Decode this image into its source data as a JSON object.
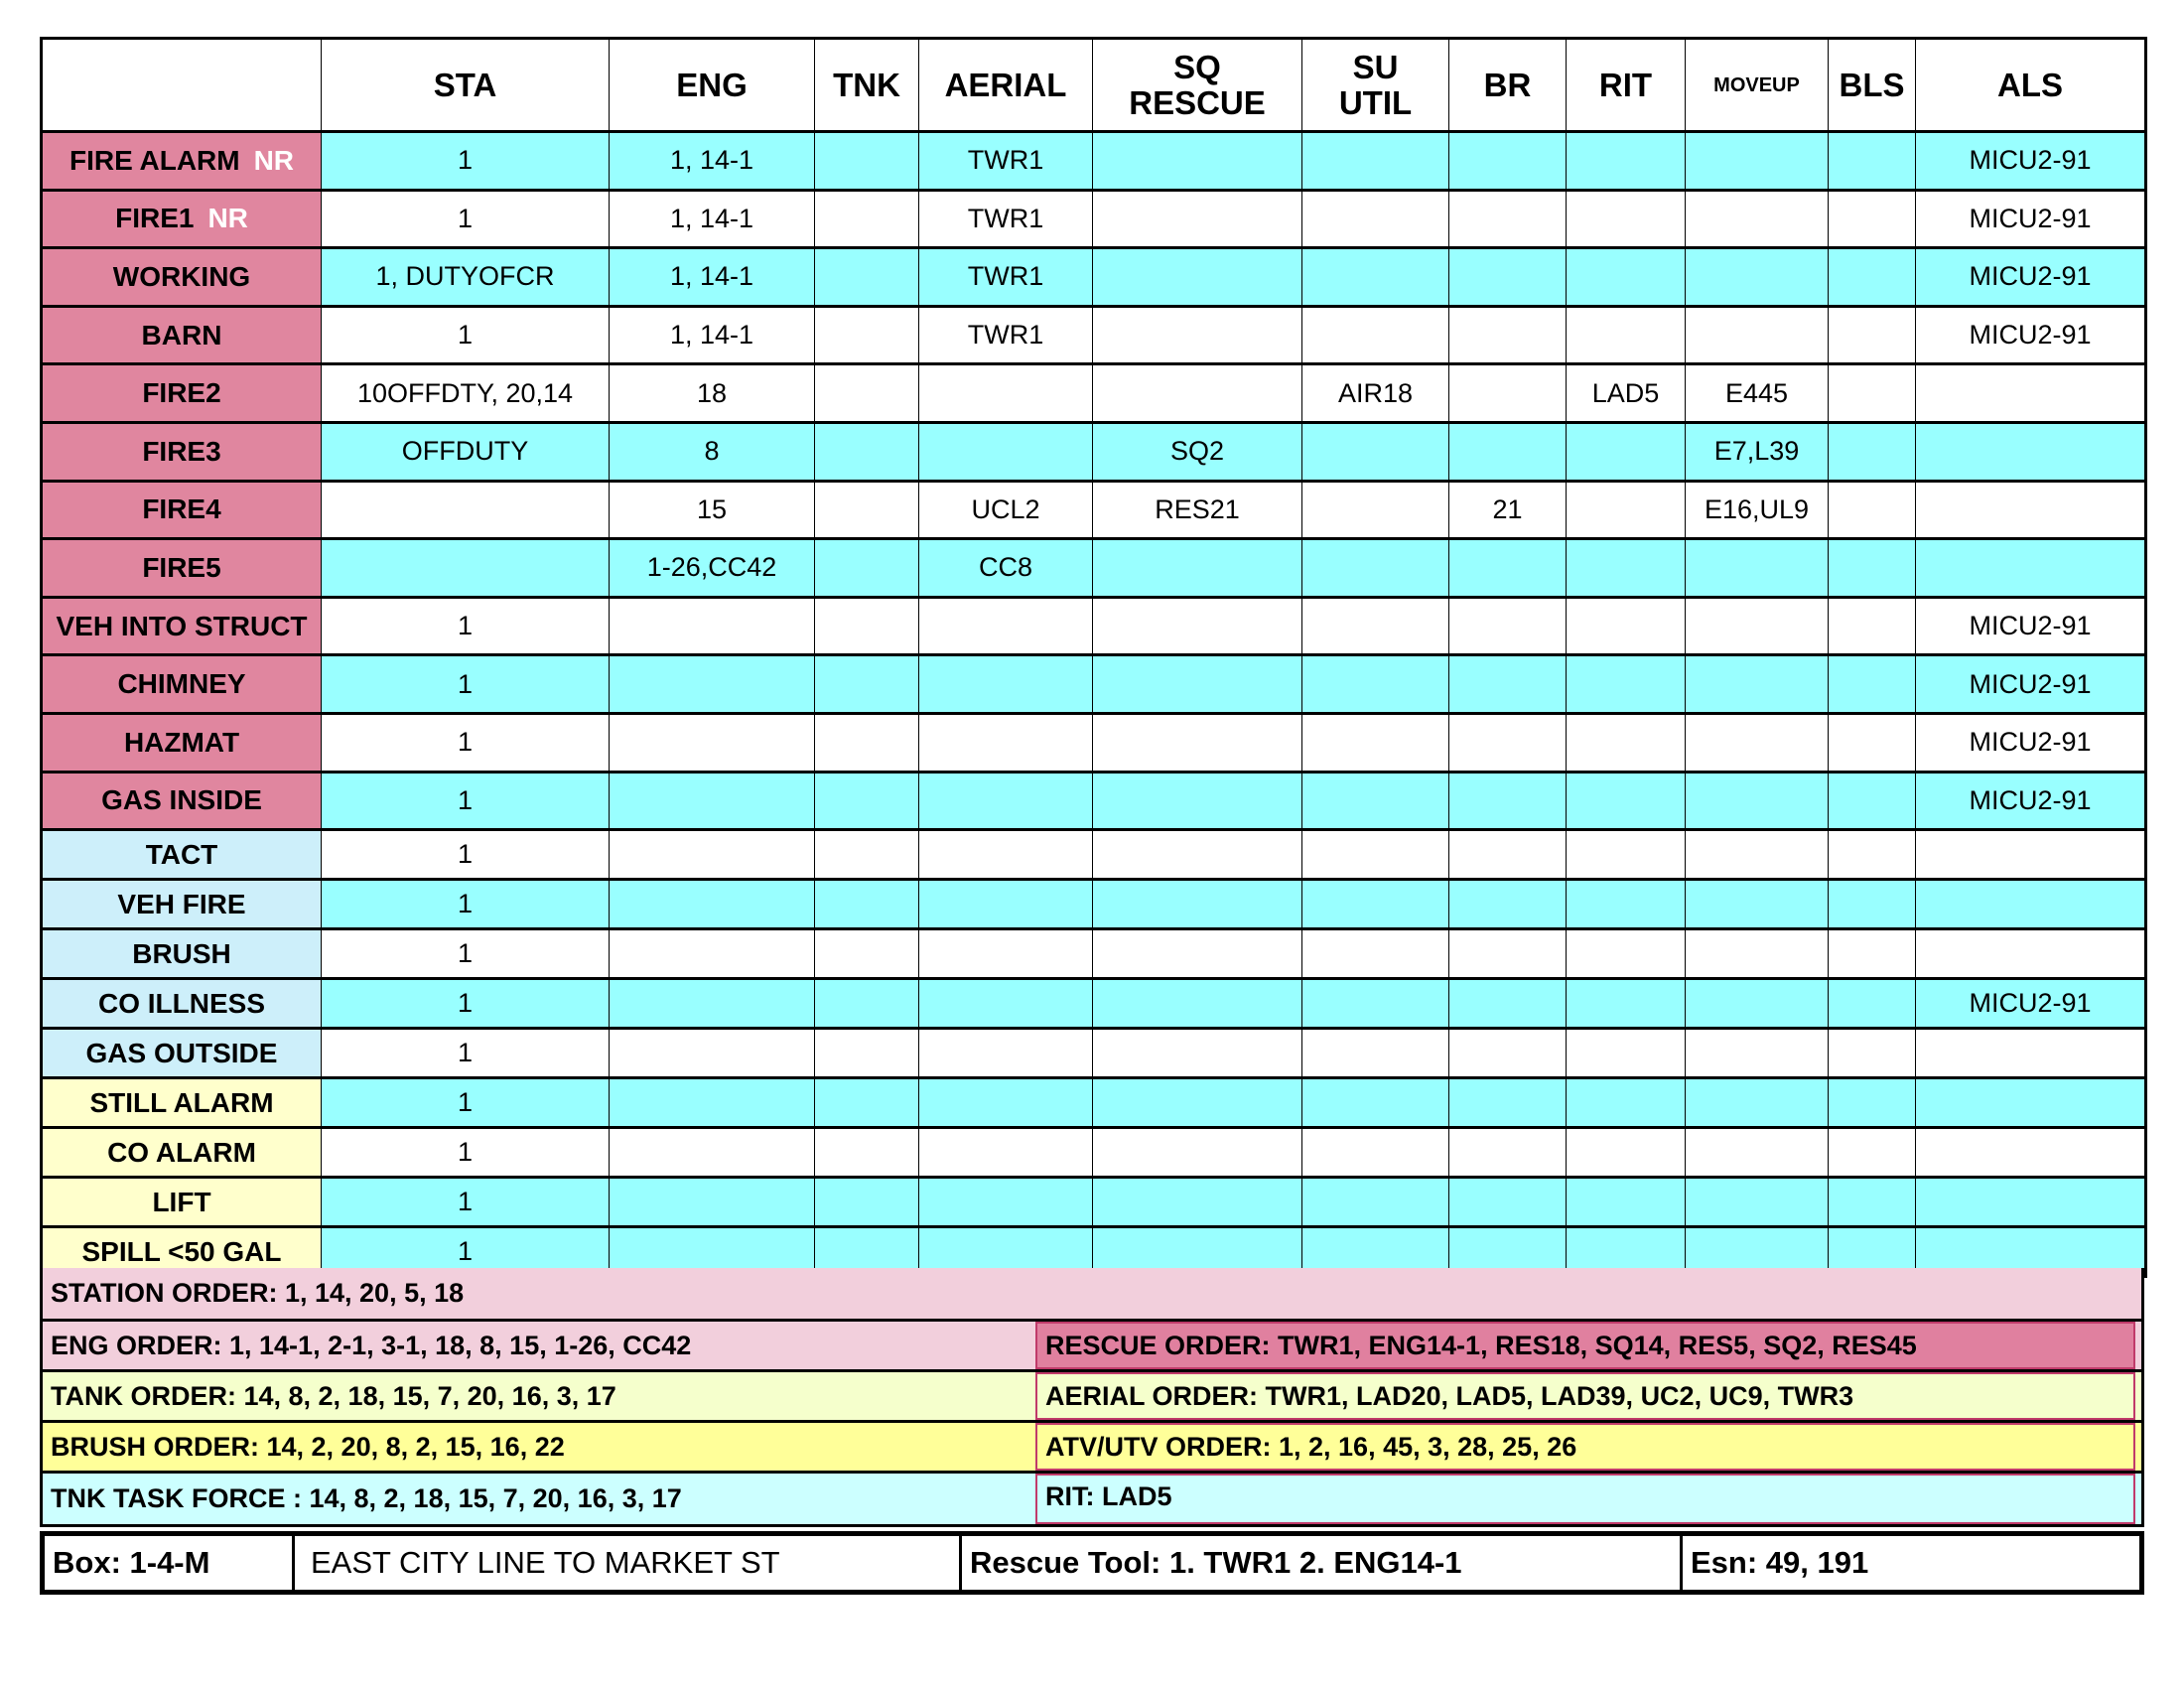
{
  "colors": {
    "incident_pink": "#e0869f",
    "shade_cyan": "#99ffff",
    "label_blue": "#cdeffa",
    "label_yellow": "#ffffcc",
    "order_pink": "#f2cfdc",
    "order_yellow_light": "#f5ffcc",
    "order_yellow": "#ffff99",
    "order_cyan": "#ccffff",
    "rescue_pink": "#e0809f"
  },
  "headers": [
    "",
    "STA",
    "ENG",
    "TNK",
    "AERIAL",
    "SQ\nRESCUE",
    "SU\nUTIL",
    "BR",
    "RIT",
    "MOVEUP",
    "BLS",
    "ALS"
  ],
  "rows": [
    {
      "label": "FIRE ALARM",
      "nr": "NR",
      "group": "pink",
      "shaded": true,
      "cells": [
        "1",
        "1, 14-1",
        "",
        "TWR1",
        "",
        "",
        "",
        "",
        "",
        "",
        "MICU2-91"
      ]
    },
    {
      "label": "FIRE1",
      "nr": "NR",
      "group": "pink",
      "shaded": false,
      "cells": [
        "1",
        "1, 14-1",
        "",
        "TWR1",
        "",
        "",
        "",
        "",
        "",
        "",
        "MICU2-91"
      ]
    },
    {
      "label": "WORKING",
      "group": "pink",
      "shaded": true,
      "cells": [
        "1, DUTYOFCR",
        "1, 14-1",
        "",
        "TWR1",
        "",
        "",
        "",
        "",
        "",
        "",
        "MICU2-91"
      ]
    },
    {
      "label": "BARN",
      "group": "pink",
      "shaded": false,
      "cells": [
        "1",
        "1, 14-1",
        "",
        "TWR1",
        "",
        "",
        "",
        "",
        "",
        "",
        "MICU2-91"
      ]
    },
    {
      "label": "FIRE2",
      "group": "pink",
      "shaded": false,
      "cells": [
        "10OFFDTY, 20,14",
        "18",
        "",
        "",
        "",
        "AIR18",
        "",
        "LAD5",
        "E445",
        "",
        ""
      ]
    },
    {
      "label": "FIRE3",
      "group": "pink",
      "shaded": true,
      "cells": [
        "OFFDUTY",
        "8",
        "",
        "",
        "SQ2",
        "",
        "",
        "",
        "E7,L39",
        "",
        ""
      ]
    },
    {
      "label": "FIRE4",
      "group": "pink",
      "shaded": false,
      "cells": [
        "",
        "15",
        "",
        "UCL2",
        "RES21",
        "",
        "21",
        "",
        "E16,UL9",
        "",
        ""
      ]
    },
    {
      "label": "FIRE5",
      "group": "pink",
      "shaded": true,
      "cells": [
        "",
        "1-26,CC42",
        "",
        "CC8",
        "",
        "",
        "",
        "",
        "",
        "",
        ""
      ]
    },
    {
      "label": "VEH INTO STRUCT",
      "group": "pink",
      "shaded": false,
      "cells": [
        "1",
        "",
        "",
        "",
        "",
        "",
        "",
        "",
        "",
        "",
        "MICU2-91"
      ]
    },
    {
      "label": "CHIMNEY",
      "group": "pink",
      "shaded": true,
      "cells": [
        "1",
        "",
        "",
        "",
        "",
        "",
        "",
        "",
        "",
        "",
        "MICU2-91"
      ]
    },
    {
      "label": "HAZMAT",
      "group": "pink",
      "shaded": false,
      "cells": [
        "1",
        "",
        "",
        "",
        "",
        "",
        "",
        "",
        "",
        "",
        "MICU2-91"
      ]
    },
    {
      "label": "GAS INSIDE",
      "group": "pink",
      "shaded": true,
      "cells": [
        "1",
        "",
        "",
        "",
        "",
        "",
        "",
        "",
        "",
        "",
        "MICU2-91"
      ]
    },
    {
      "label": "TACT",
      "group": "blue",
      "shaded": false,
      "cells": [
        "1",
        "",
        "",
        "",
        "",
        "",
        "",
        "",
        "",
        "",
        ""
      ]
    },
    {
      "label": "VEH FIRE",
      "group": "blue",
      "shaded": true,
      "cells": [
        "1",
        "",
        "",
        "",
        "",
        "",
        "",
        "",
        "",
        "",
        ""
      ]
    },
    {
      "label": "BRUSH",
      "group": "blue",
      "shaded": false,
      "cells": [
        "1",
        "",
        "",
        "",
        "",
        "",
        "",
        "",
        "",
        "",
        ""
      ]
    },
    {
      "label": "CO ILLNESS",
      "group": "blue",
      "shaded": true,
      "cells": [
        "1",
        "",
        "",
        "",
        "",
        "",
        "",
        "",
        "",
        "",
        "MICU2-91"
      ]
    },
    {
      "label": "GAS OUTSIDE",
      "group": "blue",
      "shaded": false,
      "cells": [
        "1",
        "",
        "",
        "",
        "",
        "",
        "",
        "",
        "",
        "",
        ""
      ]
    },
    {
      "label": "STILL ALARM",
      "group": "yellow",
      "shaded": true,
      "cells": [
        "1",
        "",
        "",
        "",
        "",
        "",
        "",
        "",
        "",
        "",
        ""
      ]
    },
    {
      "label": "CO ALARM",
      "group": "yellow",
      "shaded": false,
      "cells": [
        "1",
        "",
        "",
        "",
        "",
        "",
        "",
        "",
        "",
        "",
        ""
      ]
    },
    {
      "label": "LIFT",
      "group": "yellow",
      "shaded": true,
      "cells": [
        "1",
        "",
        "",
        "",
        "",
        "",
        "",
        "",
        "",
        "",
        ""
      ]
    },
    {
      "label": "SPILL <50 GAL",
      "group": "yellow",
      "shaded": true,
      "cells": [
        "1",
        "",
        "",
        "",
        "",
        "",
        "",
        "",
        "",
        "",
        ""
      ]
    }
  ],
  "orders": {
    "station": "STATION ORDER: 1, 14, 20, 5, 18",
    "eng": "ENG ORDER: 1, 14-1, 2-1, 3-1, 18, 8, 15, 1-26, CC42",
    "rescue": "RESCUE ORDER: TWR1, ENG14-1, RES18, SQ14, RES5,  SQ2, RES45",
    "tank": "TANK ORDER: 14, 8, 2, 18, 15, 7, 20, 16, 3, 17",
    "aerial": "AERIAL ORDER: TWR1, LAD20, LAD5, LAD39, UC2, UC9, TWR3",
    "brush": "BRUSH ORDER: 14, 2, 20, 8, 2, 15, 16, 22",
    "atv": "ATV/UTV ORDER: 1, 2, 16, 45, 3, 28, 25, 26",
    "tnk_task": "TNK TASK FORCE : 14, 8, 2, 18, 15, 7, 20, 16, 3, 17",
    "rit": "RIT: LAD5"
  },
  "footer": {
    "box": "Box: 1-4-M",
    "area": "EAST CITY LINE TO MARKET ST",
    "rescue_tool": "Rescue Tool: 1. TWR1   2. ENG14-1",
    "esn": "Esn: 49, 191"
  }
}
